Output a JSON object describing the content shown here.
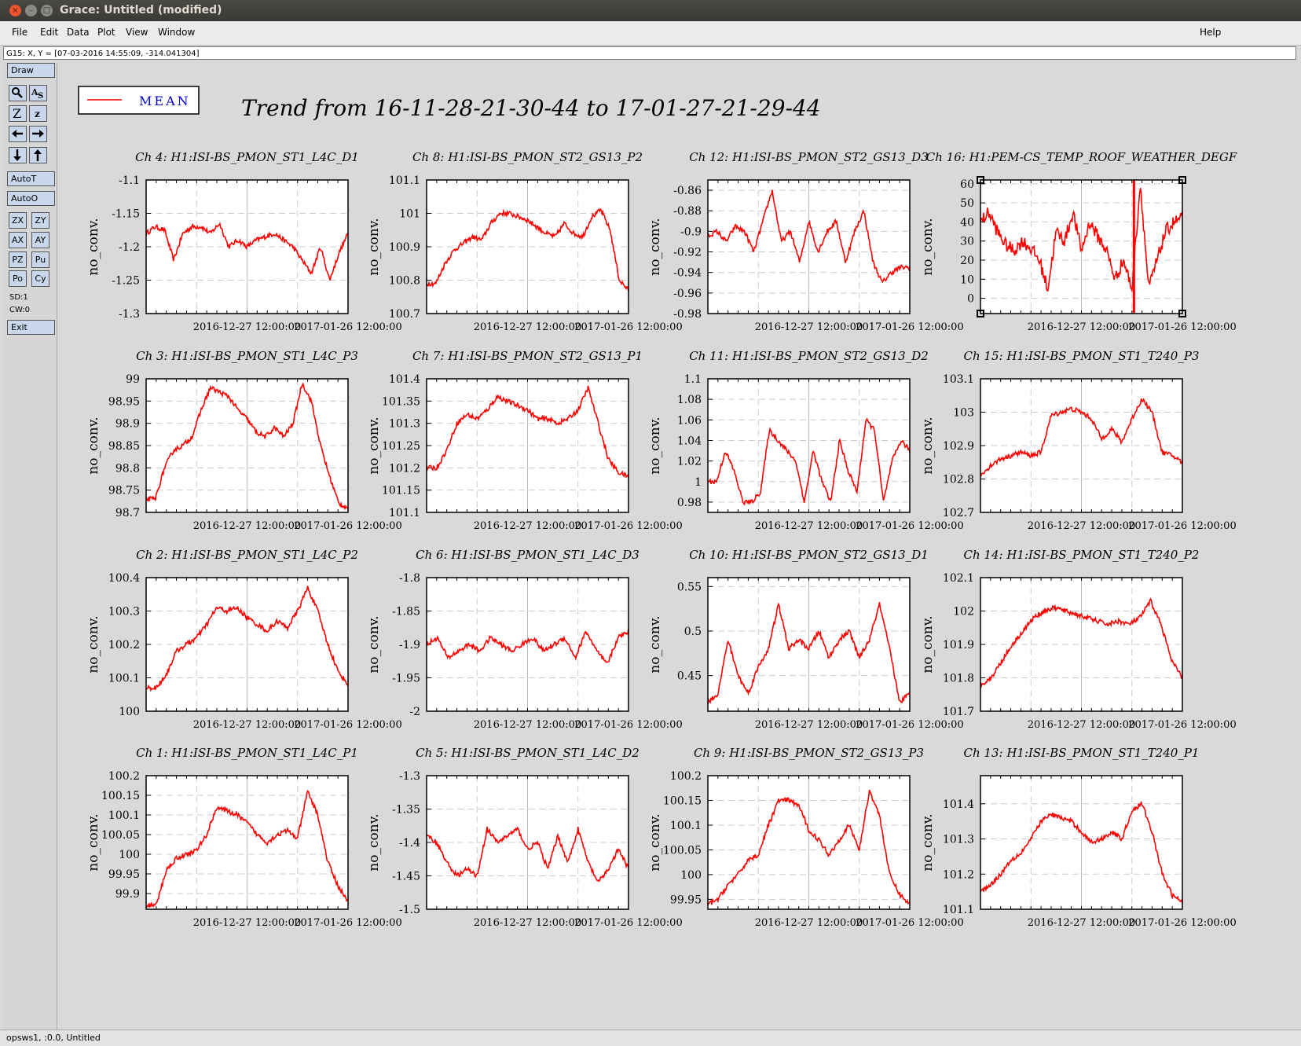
{
  "window": {
    "title": "Grace: Untitled (modified)"
  },
  "menu": {
    "items": [
      "File",
      "Edit",
      "Data",
      "Plot",
      "View",
      "Window"
    ],
    "help": "Help"
  },
  "locator": {
    "text": "G15: X, Y = [07-03-2016 14:55:09, -314.041304]"
  },
  "toolbox": {
    "draw": "Draw",
    "autot": "AutoT",
    "autoo": "AutoO",
    "zx": "ZX",
    "zy": "ZY",
    "ax": "AX",
    "ay": "AY",
    "pz": "PZ",
    "pu": "Pu",
    "po": "Po",
    "cy": "Cy",
    "sd": "SD:1",
    "cw": "CW:0",
    "exit": "Exit",
    "icons": [
      "magnifier-icon",
      "autoscale-icon",
      "zoom-in-icon",
      "zoom-out-icon",
      "arrow-left-icon",
      "arrow-right-icon",
      "arrow-down-icon",
      "arrow-up-icon"
    ]
  },
  "status": {
    "text": "opsws1, :0.0, Untitled"
  },
  "legend": {
    "label": "MEAN",
    "color": "#ff0000"
  },
  "chart_data": {
    "type": "line",
    "title": "Trend from 16-11-28-21-30-44 to 17-01-27-21-29-44",
    "line_color": "#ff0000",
    "x_tick_labels": [
      "2016-12-27 12:00:00",
      "2017-01-26 12:00:00"
    ],
    "ylabel": "no_conv.",
    "grid": true,
    "panels": [
      {
        "title": "Ch 4: H1:ISI-BS_PMON_ST1_L4C_D1",
        "yticks": [
          "-1.1",
          "-1.15",
          "-1.2",
          "-1.25",
          "-1.3"
        ],
        "ylim": [
          -1.3,
          -1.1
        ],
        "values": [
          -1.18,
          -1.17,
          -1.175,
          -1.22,
          -1.18,
          -1.17,
          -1.17,
          -1.18,
          -1.165,
          -1.2,
          -1.19,
          -1.2,
          -1.19,
          -1.185,
          -1.18,
          -1.19,
          -1.2,
          -1.22,
          -1.24,
          -1.2,
          -1.25,
          -1.21,
          -1.18
        ]
      },
      {
        "title": "Ch 8: H1:ISI-BS_PMON_ST2_GS13_P2",
        "yticks": [
          "101.1",
          "101",
          "100.9",
          "100.8",
          "100.7"
        ],
        "ylim": [
          100.7,
          101.1
        ],
        "values": [
          100.79,
          100.79,
          100.85,
          100.89,
          100.91,
          100.93,
          100.92,
          100.97,
          101.0,
          101.0,
          100.99,
          100.98,
          100.96,
          100.94,
          100.93,
          100.97,
          100.94,
          100.93,
          100.99,
          101.01,
          100.95,
          100.8,
          100.77
        ]
      },
      {
        "title": "Ch 12: H1:ISI-BS_PMON_ST2_GS13_D3",
        "yticks": [
          "-0.86",
          "-0.88",
          "-0.9",
          "-0.92",
          "-0.94",
          "-0.96",
          "-0.98"
        ],
        "ylim": [
          -0.98,
          -0.85
        ],
        "values": [
          -0.905,
          -0.9,
          -0.91,
          -0.895,
          -0.9,
          -0.92,
          -0.89,
          -0.86,
          -0.91,
          -0.9,
          -0.93,
          -0.89,
          -0.92,
          -0.9,
          -0.89,
          -0.93,
          -0.9,
          -0.88,
          -0.93,
          -0.95,
          -0.94,
          -0.935,
          -0.935
        ]
      },
      {
        "title": "Ch 16: H1:PEM-CS_TEMP_ROOF_WEATHER_DEGF",
        "yticks": [
          "60",
          "50",
          "40",
          "30",
          "20",
          "10",
          "0"
        ],
        "ylim": [
          -8,
          62
        ],
        "values": [
          40,
          45,
          35,
          28,
          25,
          30,
          26,
          20,
          5,
          35,
          30,
          45,
          25,
          40,
          32,
          25,
          10,
          20,
          5,
          60,
          5,
          20,
          35,
          40,
          42
        ]
      },
      {
        "title": "Ch 3: H1:ISI-BS_PMON_ST1_L4C_P3",
        "yticks": [
          "99",
          "98.95",
          "98.9",
          "98.85",
          "98.8",
          "98.75",
          "98.7"
        ],
        "ylim": [
          98.7,
          99.0
        ],
        "values": [
          98.73,
          98.73,
          98.8,
          98.84,
          98.85,
          98.87,
          98.93,
          98.98,
          98.97,
          98.96,
          98.93,
          98.91,
          98.88,
          98.87,
          98.89,
          98.87,
          98.9,
          98.99,
          98.95,
          98.85,
          98.78,
          98.72,
          98.71
        ]
      },
      {
        "title": "Ch 7: H1:ISI-BS_PMON_ST2_GS13_P1",
        "yticks": [
          "101.4",
          "101.35",
          "101.3",
          "101.25",
          "101.2",
          "101.15",
          "101.1"
        ],
        "ylim": [
          101.1,
          101.4
        ],
        "values": [
          101.2,
          101.2,
          101.24,
          101.3,
          101.32,
          101.31,
          101.33,
          101.36,
          101.35,
          101.34,
          101.33,
          101.31,
          101.31,
          101.3,
          101.31,
          101.33,
          101.38,
          101.3,
          101.22,
          101.19,
          101.18
        ]
      },
      {
        "title": "Ch 11: H1:ISI-BS_PMON_ST2_GS13_D2",
        "yticks": [
          "1.1",
          "1.08",
          "1.06",
          "1.04",
          "1.02",
          "1",
          "0.98"
        ],
        "ylim": [
          0.97,
          1.1
        ],
        "values": [
          1.0,
          1.0,
          1.03,
          1.01,
          0.98,
          0.98,
          0.99,
          1.05,
          1.04,
          1.03,
          1.02,
          0.98,
          1.03,
          1.0,
          0.98,
          1.04,
          1.01,
          0.99,
          1.06,
          1.05,
          0.98,
          1.02,
          1.04,
          1.03
        ]
      },
      {
        "title": "Ch 15: H1:ISI-BS_PMON_ST1_T240_P3",
        "yticks": [
          "103.1",
          "103",
          "102.9",
          "102.8",
          "102.7"
        ],
        "ylim": [
          102.7,
          103.1
        ],
        "values": [
          102.81,
          102.84,
          102.86,
          102.87,
          102.88,
          102.87,
          102.88,
          102.99,
          103.0,
          103.01,
          103.0,
          102.98,
          102.92,
          102.95,
          102.91,
          102.98,
          103.04,
          103.0,
          102.88,
          102.87,
          102.85
        ]
      },
      {
        "title": "Ch 2: H1:ISI-BS_PMON_ST1_L4C_P2",
        "yticks": [
          "100.4",
          "100.3",
          "100.2",
          "100.1",
          "100"
        ],
        "ylim": [
          100.0,
          100.4
        ],
        "values": [
          100.07,
          100.07,
          100.11,
          100.18,
          100.2,
          100.22,
          100.26,
          100.31,
          100.3,
          100.31,
          100.28,
          100.26,
          100.24,
          100.27,
          100.25,
          100.3,
          100.37,
          100.3,
          100.2,
          100.12,
          100.08
        ]
      },
      {
        "title": "Ch 6: H1:ISI-BS_PMON_ST1_L4C_D3",
        "yticks": [
          "-1.8",
          "-1.85",
          "-1.9",
          "-1.95",
          "-2"
        ],
        "ylim": [
          -2.0,
          -1.8
        ],
        "values": [
          -1.9,
          -1.89,
          -1.92,
          -1.91,
          -1.9,
          -1.91,
          -1.89,
          -1.9,
          -1.91,
          -1.9,
          -1.89,
          -1.91,
          -1.9,
          -1.89,
          -1.92,
          -1.88,
          -1.91,
          -1.93,
          -1.89,
          -1.88
        ]
      },
      {
        "title": "Ch 10: H1:ISI-BS_PMON_ST2_GS13_D1",
        "yticks": [
          "0.55",
          "0.5",
          "0.45"
        ],
        "ylim": [
          0.41,
          0.56
        ],
        "values": [
          0.42,
          0.43,
          0.49,
          0.45,
          0.43,
          0.46,
          0.48,
          0.53,
          0.48,
          0.49,
          0.48,
          0.5,
          0.47,
          0.49,
          0.5,
          0.47,
          0.49,
          0.53,
          0.48,
          0.42,
          0.43
        ]
      },
      {
        "title": "Ch 14: H1:ISI-BS_PMON_ST1_T240_P2",
        "yticks": [
          "102.1",
          "102",
          "101.9",
          "101.8",
          "101.7"
        ],
        "ylim": [
          101.7,
          102.1
        ],
        "values": [
          101.78,
          101.8,
          101.85,
          101.9,
          101.94,
          101.98,
          102.0,
          102.01,
          102.0,
          101.99,
          101.98,
          101.97,
          101.96,
          101.97,
          101.96,
          101.98,
          102.03,
          101.96,
          101.85,
          101.8
        ]
      },
      {
        "title": "Ch 1: H1:ISI-BS_PMON_ST1_L4C_P1",
        "yticks": [
          "100.2",
          "100.15",
          "100.1",
          "100.05",
          "100",
          "99.95",
          "99.9"
        ],
        "ylim": [
          99.86,
          100.2
        ],
        "values": [
          99.87,
          99.87,
          99.96,
          99.99,
          100.0,
          100.01,
          100.05,
          100.12,
          100.11,
          100.1,
          100.08,
          100.05,
          100.03,
          100.05,
          100.06,
          100.04,
          100.16,
          100.1,
          99.98,
          99.92,
          99.88
        ]
      },
      {
        "title": "Ch 5: H1:ISI-BS_PMON_ST1_L4C_D2",
        "yticks": [
          "-1.3",
          "-1.35",
          "-1.4",
          "-1.45",
          "-1.5"
        ],
        "ylim": [
          -1.5,
          -1.3
        ],
        "values": [
          -1.39,
          -1.4,
          -1.43,
          -1.45,
          -1.44,
          -1.45,
          -1.38,
          -1.4,
          -1.39,
          -1.38,
          -1.41,
          -1.4,
          -1.44,
          -1.39,
          -1.43,
          -1.38,
          -1.43,
          -1.46,
          -1.44,
          -1.41,
          -1.44
        ]
      },
      {
        "title": "Ch 9: H1:ISI-BS_PMON_ST2_GS13_P3",
        "yticks": [
          "100.2",
          "100.15",
          "100.1",
          "100.05",
          "100",
          "99.95"
        ],
        "ylim": [
          99.93,
          100.2
        ],
        "values": [
          99.94,
          99.95,
          99.98,
          100.0,
          100.03,
          100.04,
          100.1,
          100.15,
          100.15,
          100.14,
          100.09,
          100.07,
          100.04,
          100.07,
          100.1,
          100.05,
          100.17,
          100.12,
          100.0,
          99.96,
          99.94
        ]
      },
      {
        "title": "Ch 13: H1:ISI-BS_PMON_ST1_T240_P1",
        "yticks": [
          "101.4",
          "101.3",
          "101.2",
          "101.1"
        ],
        "ylim": [
          101.1,
          101.48
        ],
        "values": [
          101.15,
          101.17,
          101.2,
          101.24,
          101.26,
          101.3,
          101.35,
          101.37,
          101.36,
          101.35,
          101.32,
          101.29,
          101.3,
          101.32,
          101.3,
          101.38,
          101.4,
          101.32,
          101.2,
          101.14,
          101.12
        ]
      }
    ]
  }
}
